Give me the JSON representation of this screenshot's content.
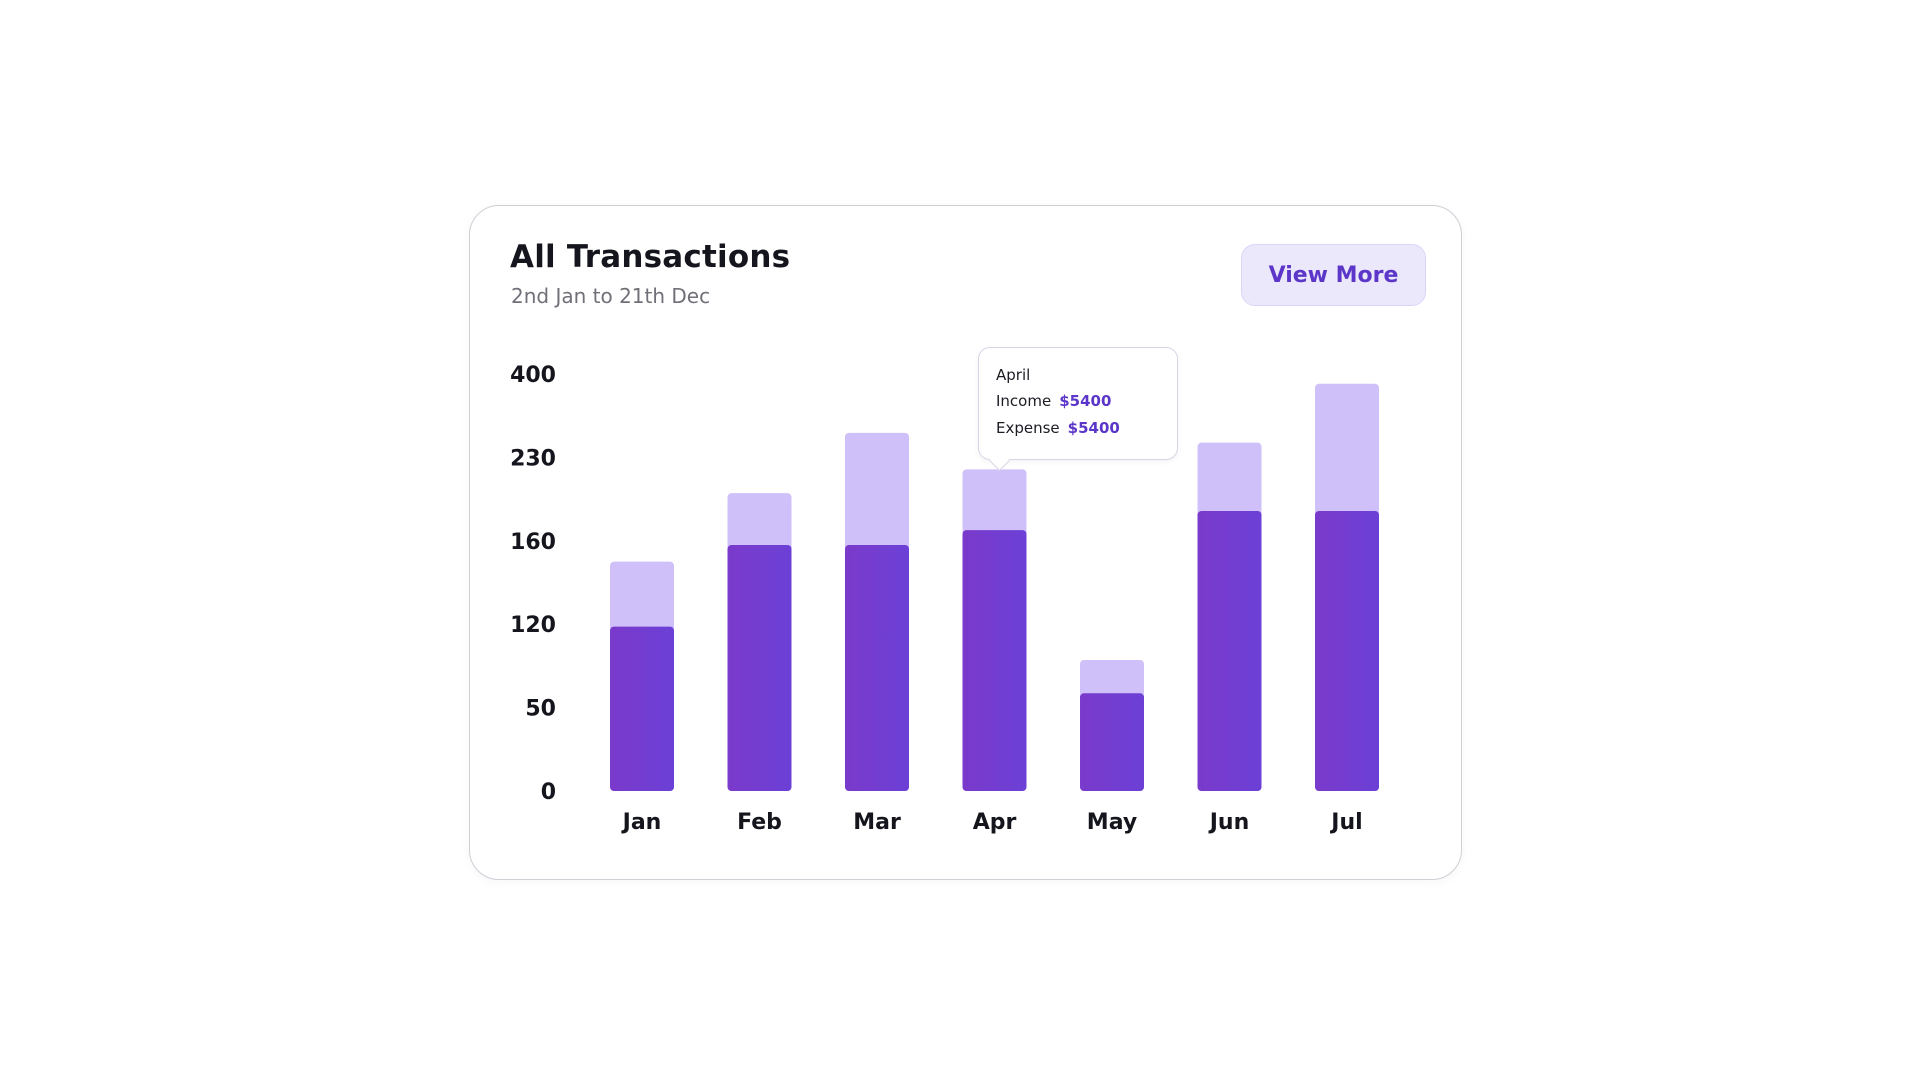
{
  "card": {
    "title": "All Transactions",
    "subtitle": "2nd Jan to 21th Dec",
    "view_more_label": "View More"
  },
  "tooltip": {
    "month": "April",
    "income_label": "Income",
    "income_value": "$5400",
    "expense_label": "Expense",
    "expense_value": "$5400"
  },
  "colors": {
    "income": "#7438cf",
    "expense": "#cfc0f9",
    "accent": "#5b36c8"
  },
  "chart_data": {
    "type": "bar",
    "stacked": true,
    "title": "All Transactions",
    "subtitle": "2nd Jan to 21th Dec",
    "categories": [
      "Jan",
      "Feb",
      "Mar",
      "Apr",
      "May",
      "Jun",
      "Jul"
    ],
    "y_ticks": [
      "0",
      "50",
      "120",
      "160",
      "230",
      "400"
    ],
    "series": [
      {
        "key": "income",
        "values": [
          118,
          158,
          158,
          169,
          62,
          185,
          185
        ]
      },
      {
        "key": "expense",
        "values": [
          150,
          200,
          280,
          220,
          90,
          260,
          380
        ]
      }
    ],
    "series_note_units": "values read on tick-index scale",
    "grid": false,
    "legend": "none"
  }
}
